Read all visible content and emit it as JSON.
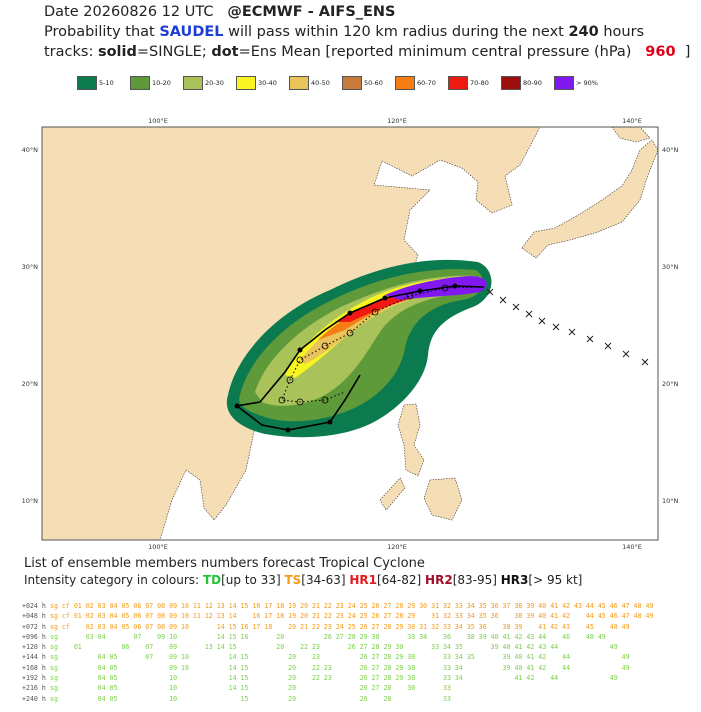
{
  "header": {
    "line1": [
      "Date 20260826 12 UTC",
      "@ECMWF - AIFS_ENS"
    ],
    "line2": [
      "Probability that",
      "SAUDEL",
      "will pass within 120 km radius during the next",
      "240",
      "hours"
    ],
    "line3": [
      "tracks:",
      "solid",
      "=SINGLE;",
      "dot",
      "=Ens Mean [reported minimum central pressure (hPa)",
      "960",
      "]"
    ]
  },
  "legend": [
    {
      "label": "5-10",
      "color": "#0b7a4f"
    },
    {
      "label": "10-20",
      "color": "#5e9a3a"
    },
    {
      "label": "20-30",
      "color": "#a9c25a"
    },
    {
      "label": "30-40",
      "color": "#f7f421"
    },
    {
      "label": "40-50",
      "color": "#e9c45b"
    },
    {
      "label": "50-60",
      "color": "#c87b3b"
    },
    {
      "label": "60-70",
      "color": "#f57d12"
    },
    {
      "label": "70-80",
      "color": "#ef1a12"
    },
    {
      "label": "80-90",
      "color": "#9a0e0e"
    },
    {
      "label": "> 90%",
      "color": "#7f19f0"
    }
  ],
  "map": {
    "lon_labels": [
      "100°E",
      "120°E",
      "140°E"
    ],
    "lat_labels": [
      "10°N",
      "20°N",
      "30°N",
      "40°N"
    ]
  },
  "list": {
    "title": "List of ensemble members numbers forecast Tropical Cyclone",
    "intensity": [
      "Intensity category in colours:",
      "TD",
      "[up to 33]",
      "TS",
      "[34-63]",
      "HR1",
      "[64-82]",
      "HR2",
      "[83-95]",
      "HR3",
      "[> 95 kt]"
    ],
    "rows": [
      {
        "label": "+024 h",
        "members": "sg cf 01 02 03 04 05 06 07 08 09 10 11 12 13 14 15 16 17 18 19 20 21 22 23 24 25 26 27 28 29 30 31 32 33 34 35 36 37 38 39 40 41 42 43 44 45 46 47 48 49",
        "color": "#f39a1a"
      },
      {
        "label": "+048 h",
        "members": "sg cf 01 02 03 04 05 06 07 08 09 10 11 12 13 14    16 17 18 19 20 21 22 23 24 25 26 27 28 29    31 32 33 34 35 36    38 39 40 41 42    44 45 46 47 48 49",
        "color": "#f39a1a"
      },
      {
        "label": "+072 h",
        "members": "sg cf    02 03 04 05 06 07 08 09 10       14 15 16 17 18    20 21 22 23 24 25 26 27 28 29 30 31 32 33 34 35 36    38 39    41 42 43    45    48 49",
        "color": "#f39a1a"
      },
      {
        "label": "+096 h",
        "members": "sg       03 04       07    09 10          14 15 16       20          26 27 28 29 30       33 34    36    38 39 40 41 42 43 44    46    48 49",
        "color": "#7ad04a"
      },
      {
        "label": "+120 h",
        "members": "sg    01          06    07    09       13 14 15          20    22 23       26 27 28 29 30       33 34 35       39 40 41 42 43 44             49",
        "color": "#7ad04a"
      },
      {
        "label": "+144 h",
        "members": "sg          04 05       07    09 10          14 15          20    23          26 27 28 29 30       33 34 35       39 40 41 42    44             49",
        "color": "#7ad04a"
      },
      {
        "label": "+168 h",
        "members": "sg          04 05             09 10          14 15          20    22 23       26 27 28 29 30       33 34          39 40 41 42    44             49",
        "color": "#7ad04a"
      },
      {
        "label": "+192 h",
        "members": "sg          04 05             10             14 15          20    22 23       26 27 28 29 30       33 34             41 42    44             49",
        "color": "#7ad04a"
      },
      {
        "label": "+216 h",
        "members": "sg          04 05             10             14 15          20                26 27 28    30       33                                              ",
        "color": "#7ad04a"
      },
      {
        "label": "+240 h",
        "members": "sg          04 05             10                15          20                26    28             33                                              ",
        "color": "#7ad04a"
      }
    ]
  }
}
